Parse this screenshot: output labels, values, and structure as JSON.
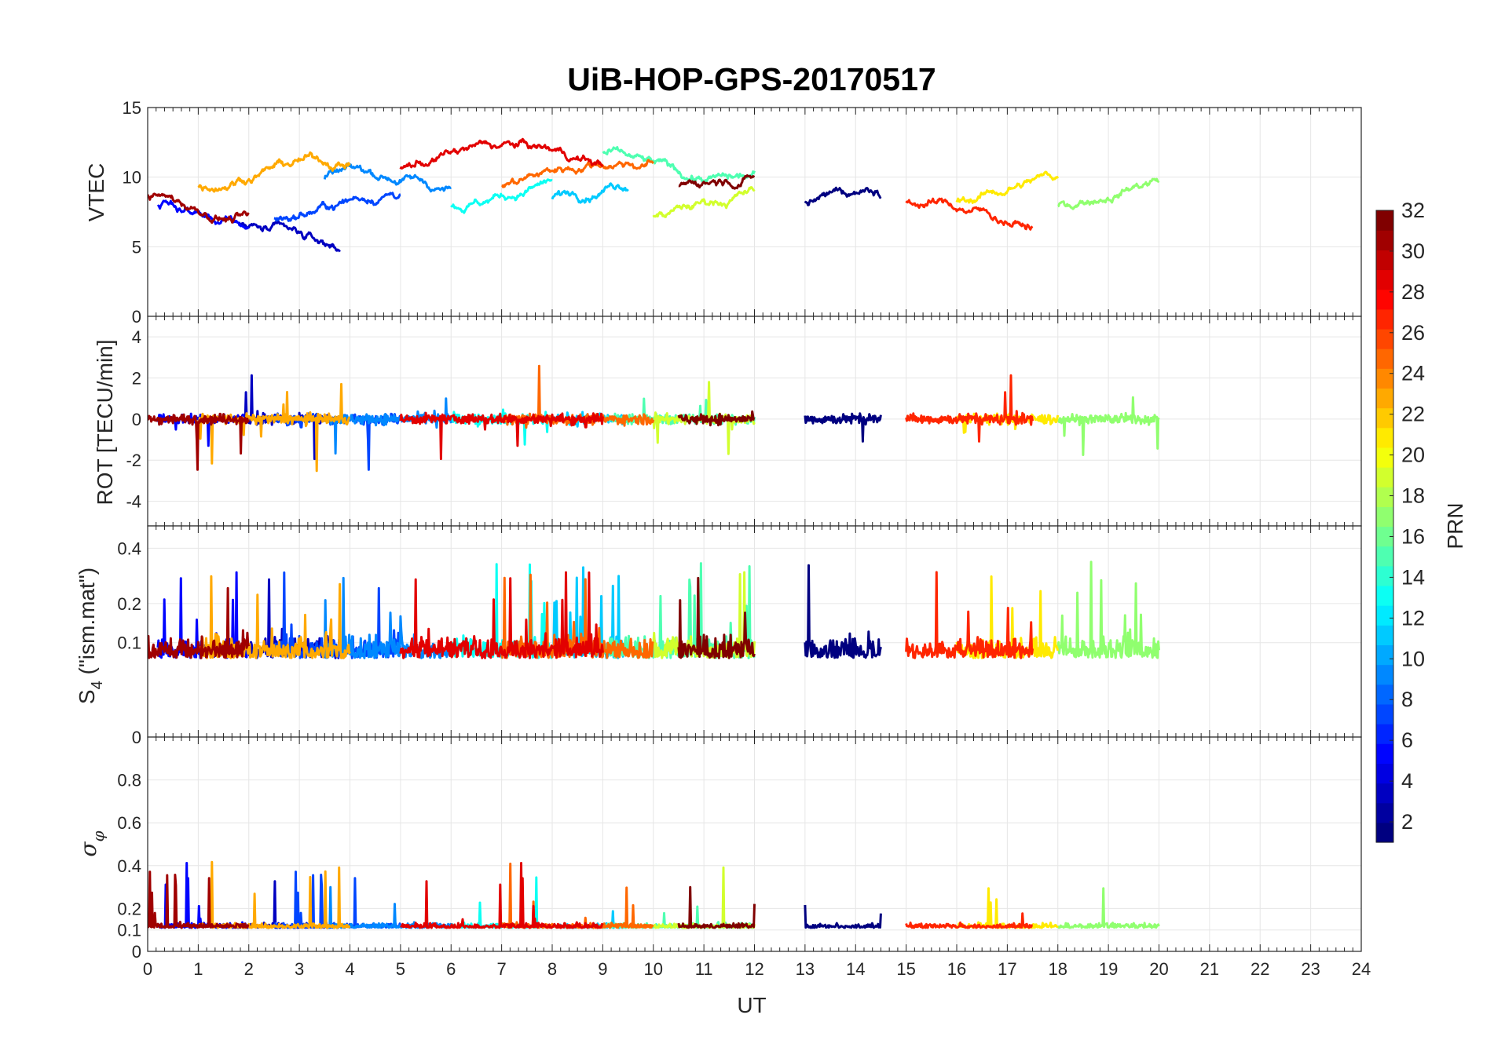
{
  "chart_data": {
    "type": "line",
    "title": "UiB-HOP-GPS-20170517",
    "xlabel": "UT",
    "xlim": [
      0,
      24
    ],
    "x_ticks": [
      "0",
      "1",
      "2",
      "3",
      "4",
      "5",
      "6",
      "7",
      "8",
      "9",
      "10",
      "11",
      "12",
      "13",
      "14",
      "15",
      "16",
      "17",
      "18",
      "19",
      "20",
      "21",
      "22",
      "23",
      "24"
    ],
    "grid": true,
    "colorbar": {
      "label": "PRN",
      "range": [
        1,
        32
      ],
      "colormap": "jet",
      "ticks": [
        "2",
        "4",
        "6",
        "8",
        "10",
        "12",
        "14",
        "16",
        "18",
        "20",
        "22",
        "24",
        "26",
        "28",
        "30",
        "32"
      ],
      "placement": "right"
    },
    "panels": [
      {
        "id": "vtec",
        "ylabel": "VTEC",
        "ylim": [
          0,
          15
        ],
        "y_ticks": [
          "0",
          "5",
          "10",
          "15"
        ],
        "typical_range": [
          4,
          14
        ]
      },
      {
        "id": "rot",
        "ylabel": "ROT [TECU/min]",
        "ylim": [
          -5.2,
          5
        ],
        "y_ticks": [
          "-4",
          "-2",
          "0",
          "2",
          "4"
        ],
        "typical_range": [
          -4.8,
          3.7
        ]
      },
      {
        "id": "s4",
        "ylabel_main": "S",
        "ylabel_sub": "4",
        "ylabel_rest": " (\"ism.mat\")",
        "ylim": [
          0,
          0.5
        ],
        "y_ticks": [
          "0",
          "0.1",
          "0.2",
          "0.4"
        ],
        "scale": "sqrt",
        "typical_range": [
          0.03,
          0.48
        ]
      },
      {
        "id": "sigma",
        "ylabel_main": "σ",
        "ylabel_sub": "φ",
        "ylim": [
          0,
          1
        ],
        "y_ticks": [
          "0",
          "0.1",
          "0.2",
          "0.4",
          "0.6",
          "0.8"
        ],
        "typical_range": [
          0.05,
          0.73
        ]
      }
    ],
    "series": [
      {
        "prn": 1,
        "vtec_level": 9,
        "pass": [
          13,
          14.5
        ]
      },
      {
        "prn": 3,
        "vtec_level": 6,
        "pass": [
          1.8,
          3.8
        ]
      },
      {
        "prn": 5,
        "vtec_level": 7,
        "pass": [
          0.2,
          2
        ]
      },
      {
        "prn": 7,
        "vtec_level": 8,
        "pass": [
          2.5,
          5
        ]
      },
      {
        "prn": 9,
        "vtec_level": 9,
        "pass": [
          3.5,
          6
        ]
      },
      {
        "prn": 11,
        "vtec_level": 9,
        "pass": [
          8,
          9.5
        ]
      },
      {
        "prn": 13,
        "vtec_level": 9,
        "pass": [
          6,
          8
        ]
      },
      {
        "prn": 15,
        "vtec_level": 11,
        "pass": [
          9,
          12
        ]
      },
      {
        "prn": 17,
        "vtec_level": 9,
        "pass": [
          18,
          20
        ]
      },
      {
        "prn": 19,
        "vtec_level": 8,
        "pass": [
          10,
          12
        ]
      },
      {
        "prn": 21,
        "vtec_level": 9,
        "pass": [
          16,
          18
        ]
      },
      {
        "prn": 23,
        "vtec_level": 10,
        "pass": [
          1,
          4
        ]
      },
      {
        "prn": 25,
        "vtec_level": 10,
        "pass": [
          7,
          10
        ]
      },
      {
        "prn": 27,
        "vtec_level": 7,
        "pass": [
          15,
          17.5
        ]
      },
      {
        "prn": 29,
        "vtec_level": 11,
        "pass": [
          5,
          9
        ]
      },
      {
        "prn": 31,
        "vtec_level": 8,
        "pass": [
          0,
          2
        ]
      },
      {
        "prn": 32,
        "vtec_level": 9,
        "pass": [
          10.5,
          12
        ]
      }
    ]
  }
}
